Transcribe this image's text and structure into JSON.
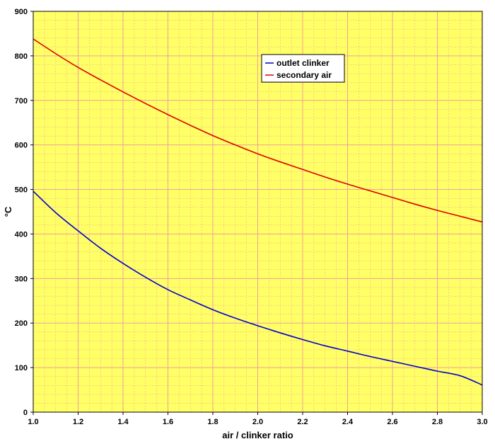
{
  "chart_data": {
    "type": "line",
    "title": "",
    "xlabel": "air / clinker ratio",
    "ylabel": "°C",
    "xlim": [
      1.0,
      3.0
    ],
    "ylim": [
      0,
      900
    ],
    "x_ticks": [
      "1.0",
      "1.2",
      "1.4",
      "1.6",
      "1.8",
      "2.0",
      "2.2",
      "2.4",
      "2.6",
      "2.8",
      "3.0"
    ],
    "y_ticks": [
      "0",
      "100",
      "200",
      "300",
      "400",
      "500",
      "600",
      "700",
      "800",
      "900"
    ],
    "x_minor_step": 0.05,
    "y_minor_step": 20,
    "grid": true,
    "background_color": "#ffff66",
    "grid_color": "#f0a0a0",
    "legend_position": "upper-center",
    "x": [
      1.0,
      1.1,
      1.2,
      1.3,
      1.4,
      1.5,
      1.6,
      1.7,
      1.8,
      1.9,
      2.0,
      2.1,
      2.2,
      2.3,
      2.4,
      2.5,
      2.6,
      2.7,
      2.8,
      2.9,
      3.0
    ],
    "series": [
      {
        "name": "outlet clinker",
        "color": "#0000cc",
        "values": [
          496,
          448,
          407,
          368,
          334,
          303,
          275,
          252,
          230,
          211,
          194,
          178,
          163,
          149,
          137,
          125,
          114,
          103,
          92,
          82,
          61
        ]
      },
      {
        "name": "secondary air",
        "color": "#dd0000",
        "values": [
          838,
          805,
          774,
          746,
          719,
          693,
          668,
          644,
          621,
          600,
          580,
          562,
          545,
          528,
          512,
          497,
          482,
          467,
          453,
          440,
          427
        ]
      }
    ]
  }
}
